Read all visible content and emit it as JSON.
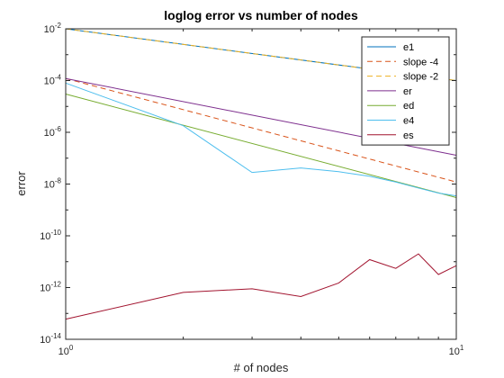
{
  "chart_data": {
    "type": "line",
    "title": "loglog error vs number of nodes",
    "xlabel": "# of nodes",
    "ylabel": "error",
    "xscale": "log",
    "yscale": "log",
    "xlim": [
      1,
      10
    ],
    "ylim": [
      1e-14,
      0.01
    ],
    "x_ticks": [
      {
        "value": 1,
        "base": "10",
        "exp": "0"
      },
      {
        "value": 10,
        "base": "10",
        "exp": "1"
      }
    ],
    "y_ticks": [
      {
        "value": 1e-14,
        "base": "10",
        "exp": "-14"
      },
      {
        "value": 1e-12,
        "base": "10",
        "exp": "-12"
      },
      {
        "value": 1e-10,
        "base": "10",
        "exp": "-10"
      },
      {
        "value": 1e-08,
        "base": "10",
        "exp": "-8"
      },
      {
        "value": 1e-06,
        "base": "10",
        "exp": "-6"
      },
      {
        "value": 0.0001,
        "base": "10",
        "exp": "-4"
      },
      {
        "value": 0.01,
        "base": "10",
        "exp": "-2"
      }
    ],
    "grid": false,
    "legend_position": "top-right",
    "series": [
      {
        "name": "e1",
        "color": "#0072BD",
        "dash": "solid",
        "x": [
          1,
          10
        ],
        "y": [
          0.01,
          0.0001
        ]
      },
      {
        "name": "slope -4",
        "color": "#D95319",
        "dash": "dashed",
        "x": [
          1,
          10
        ],
        "y": [
          0.00012,
          1.2e-08
        ]
      },
      {
        "name": "slope -2",
        "color": "#EDB120",
        "dash": "dashed",
        "x": [
          1,
          10
        ],
        "y": [
          0.01,
          0.0001
        ]
      },
      {
        "name": "er",
        "color": "#7E2F8E",
        "dash": "solid",
        "x": [
          1,
          10
        ],
        "y": [
          0.00012,
          1.3e-07
        ]
      },
      {
        "name": "ed",
        "color": "#77AC30",
        "dash": "solid",
        "x": [
          1,
          10
        ],
        "y": [
          3e-05,
          3e-09
        ]
      },
      {
        "name": "e4",
        "color": "#4DBEEE",
        "dash": "solid",
        "x": [
          1,
          2,
          3,
          4,
          5,
          6,
          7,
          8,
          9,
          10
        ],
        "y": [
          8e-05,
          1.8e-06,
          2.8e-08,
          4.2e-08,
          3e-08,
          2e-08,
          1.2e-08,
          7e-09,
          4.5e-09,
          3.5e-09
        ]
      },
      {
        "name": "es",
        "color": "#A2142F",
        "dash": "solid",
        "x": [
          1,
          2,
          3,
          4,
          5,
          6,
          7,
          8,
          9,
          10
        ],
        "y": [
          6e-14,
          6.5e-13,
          9e-13,
          4.5e-13,
          1.5e-12,
          1.2e-11,
          5.5e-12,
          2e-11,
          3.2e-12,
          7e-12
        ]
      }
    ]
  }
}
